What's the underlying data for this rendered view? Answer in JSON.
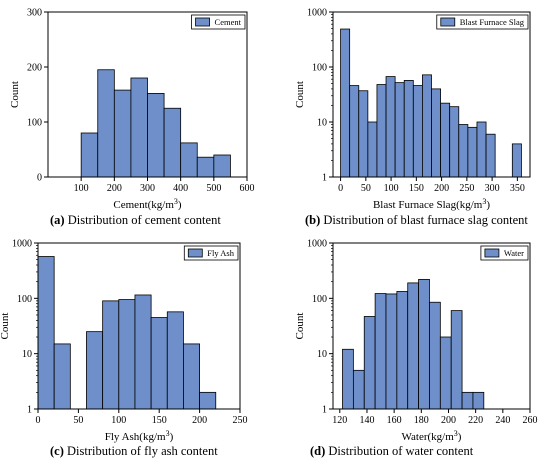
{
  "colors": {
    "bar_fill": "#6e8fc9",
    "bar_stroke": "#000000",
    "axis": "#000000"
  },
  "captions": [
    {
      "label": "(a)",
      "text": "Distribution of cement content"
    },
    {
      "label": "(b)",
      "text": "Distribution of blast furnace slag content"
    },
    {
      "label": "(c)",
      "text": "Distribution of fly ash content"
    },
    {
      "label": "(d)",
      "text": "Distribution of water content"
    }
  ],
  "chart_data": [
    {
      "type": "bar",
      "subtype": "histogram",
      "legend": "Cement",
      "legend_position": "top-right",
      "xlabel_main": "Cement(kg/m",
      "xlabel_sup": "3",
      "xlabel_end": ")",
      "ylabel": "Count",
      "xlim": [
        0,
        600
      ],
      "ylim": [
        0,
        300
      ],
      "yscale": "linear",
      "xticks": [
        "100",
        "200",
        "300",
        "400",
        "500",
        "600"
      ],
      "yticks": [
        "0",
        "100",
        "200",
        "300"
      ],
      "grid": false,
      "bin_width": 50,
      "bins": [
        {
          "x": 100,
          "count": 80
        },
        {
          "x": 150,
          "count": 195
        },
        {
          "x": 200,
          "count": 158
        },
        {
          "x": 250,
          "count": 180
        },
        {
          "x": 300,
          "count": 152
        },
        {
          "x": 350,
          "count": 125
        },
        {
          "x": 400,
          "count": 62
        },
        {
          "x": 450,
          "count": 36
        },
        {
          "x": 500,
          "count": 40
        }
      ]
    },
    {
      "type": "bar",
      "subtype": "histogram",
      "legend": "Blast Furnace Slag",
      "legend_position": "top-right",
      "xlabel_main": "Blast Furnace Slag(kg/m",
      "xlabel_sup": "3",
      "xlabel_end": ")",
      "ylabel": "Count",
      "xlim": [
        -15,
        375
      ],
      "ylim": [
        1,
        1000
      ],
      "yscale": "log",
      "xticks": [
        "0",
        "50",
        "100",
        "150",
        "200",
        "250",
        "300",
        "350"
      ],
      "yticks": [
        "1",
        "10",
        "100",
        "1000"
      ],
      "grid": false,
      "bin_width": 18,
      "bins": [
        {
          "x": 0,
          "count": 490
        },
        {
          "x": 18,
          "count": 46
        },
        {
          "x": 36,
          "count": 37
        },
        {
          "x": 54,
          "count": 10
        },
        {
          "x": 72,
          "count": 48
        },
        {
          "x": 90,
          "count": 67
        },
        {
          "x": 108,
          "count": 52
        },
        {
          "x": 126,
          "count": 57
        },
        {
          "x": 144,
          "count": 46
        },
        {
          "x": 162,
          "count": 72
        },
        {
          "x": 180,
          "count": 40
        },
        {
          "x": 198,
          "count": 22
        },
        {
          "x": 216,
          "count": 19
        },
        {
          "x": 234,
          "count": 9
        },
        {
          "x": 252,
          "count": 8
        },
        {
          "x": 270,
          "count": 10
        },
        {
          "x": 288,
          "count": 6
        },
        {
          "x": 340,
          "count": 4
        }
      ]
    },
    {
      "type": "bar",
      "subtype": "histogram",
      "legend": "Fly Ash",
      "legend_position": "top-right",
      "xlabel_main": "Fly Ash(kg/m",
      "xlabel_sup": "3",
      "xlabel_end": ")",
      "ylabel": "Count",
      "xlim": [
        0,
        250
      ],
      "ylim": [
        1,
        1000
      ],
      "yscale": "log",
      "xticks": [
        "0",
        "50",
        "100",
        "150",
        "200",
        "250"
      ],
      "yticks": [
        "1",
        "10",
        "100",
        "1000"
      ],
      "grid": false,
      "bin_width": 20,
      "bins": [
        {
          "x": 0,
          "count": 570
        },
        {
          "x": 20,
          "count": 15
        },
        {
          "x": 60,
          "count": 25
        },
        {
          "x": 80,
          "count": 90
        },
        {
          "x": 100,
          "count": 95
        },
        {
          "x": 120,
          "count": 115
        },
        {
          "x": 140,
          "count": 45
        },
        {
          "x": 160,
          "count": 57
        },
        {
          "x": 180,
          "count": 15
        },
        {
          "x": 200,
          "count": 2
        }
      ]
    },
    {
      "type": "bar",
      "subtype": "histogram",
      "legend": "Water",
      "legend_position": "top-right",
      "xlabel_main": "Water(kg/m",
      "xlabel_sup": "3",
      "xlabel_end": ")",
      "ylabel": "Count",
      "xlim": [
        115,
        260
      ],
      "ylim": [
        1,
        1000
      ],
      "yscale": "log",
      "xticks": [
        "120",
        "140",
        "160",
        "180",
        "200",
        "220",
        "240",
        "260"
      ],
      "yticks": [
        "1",
        "10",
        "100",
        "1000"
      ],
      "grid": false,
      "bin_width": 8,
      "bins": [
        {
          "x": 122,
          "count": 12
        },
        {
          "x": 130,
          "count": 5
        },
        {
          "x": 138,
          "count": 47
        },
        {
          "x": 146,
          "count": 122
        },
        {
          "x": 154,
          "count": 120
        },
        {
          "x": 162,
          "count": 133
        },
        {
          "x": 170,
          "count": 190
        },
        {
          "x": 178,
          "count": 220
        },
        {
          "x": 186,
          "count": 85
        },
        {
          "x": 194,
          "count": 20
        },
        {
          "x": 202,
          "count": 60
        },
        {
          "x": 210,
          "count": 2
        },
        {
          "x": 218,
          "count": 2
        }
      ]
    }
  ]
}
